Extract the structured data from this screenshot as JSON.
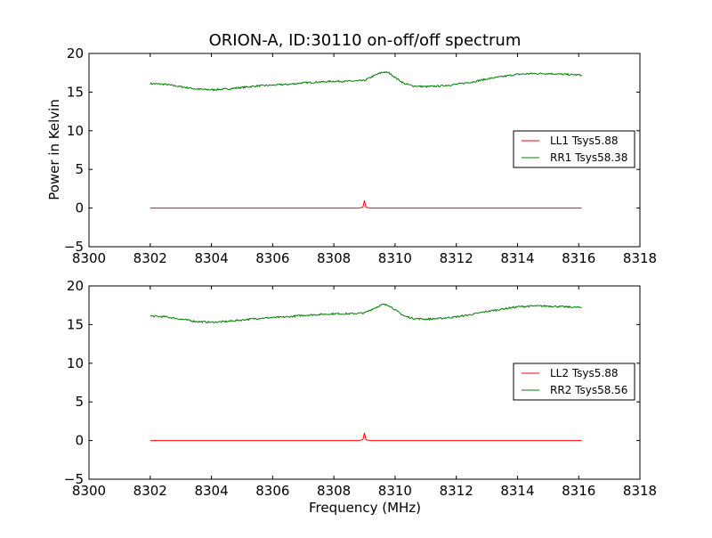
{
  "figure": {
    "title": "ORION-A, ID:30110 on-off/off spectrum",
    "xlabel": "Frequency (MHz)",
    "ylabel": "Power in Kelvin"
  },
  "chart_data": [
    {
      "type": "line",
      "xlim": [
        8300,
        8318
      ],
      "ylim": [
        -5,
        20
      ],
      "xticks": [
        8300,
        8302,
        8304,
        8306,
        8308,
        8310,
        8312,
        8314,
        8316,
        8318
      ],
      "yticks": [
        -5,
        0,
        5,
        10,
        15,
        20
      ],
      "grid": false,
      "legend_position": "center-right",
      "series": [
        {
          "name": "LL1 Tsys5.88",
          "color": "#ff0000",
          "x": [
            8302,
            8304,
            8306,
            8308,
            8308.8,
            8308.95,
            8309.0,
            8309.05,
            8309.2,
            8310,
            8312,
            8314,
            8316.1
          ],
          "y": [
            0,
            0,
            0,
            0,
            0,
            0.1,
            1.0,
            0.1,
            0,
            0,
            0,
            0,
            0
          ]
        },
        {
          "name": "RR1 Tsys58.38",
          "color": "#008000",
          "x": [
            8302,
            8302.5,
            8303,
            8303.5,
            8304,
            8304.5,
            8305,
            8305.5,
            8306,
            8306.5,
            8307,
            8307.5,
            8308,
            8308.5,
            8309,
            8309.3,
            8309.6,
            8309.8,
            8310,
            8310.3,
            8310.6,
            8311,
            8311.5,
            8312,
            8312.5,
            8313,
            8313.5,
            8314,
            8314.5,
            8315,
            8315.5,
            8316.1
          ],
          "y": [
            16.1,
            16.0,
            15.7,
            15.4,
            15.3,
            15.4,
            15.6,
            15.8,
            15.9,
            16.0,
            16.2,
            16.3,
            16.4,
            16.4,
            16.5,
            17.1,
            17.6,
            17.5,
            16.9,
            16.1,
            15.8,
            15.7,
            15.8,
            16.0,
            16.3,
            16.7,
            17.0,
            17.3,
            17.4,
            17.4,
            17.3,
            17.2
          ]
        }
      ]
    },
    {
      "type": "line",
      "xlim": [
        8300,
        8318
      ],
      "ylim": [
        -5,
        20
      ],
      "xticks": [
        8300,
        8302,
        8304,
        8306,
        8308,
        8310,
        8312,
        8314,
        8316,
        8318
      ],
      "yticks": [
        -5,
        0,
        5,
        10,
        15,
        20
      ],
      "grid": false,
      "legend_position": "center-right",
      "series": [
        {
          "name": "LL2 Tsys5.88",
          "color": "#ff0000",
          "x": [
            8302,
            8304,
            8306,
            8308,
            8308.8,
            8308.95,
            8309.0,
            8309.05,
            8309.2,
            8310,
            8312,
            8314,
            8316.1
          ],
          "y": [
            0,
            0,
            0,
            0,
            0,
            0.1,
            1.0,
            0.1,
            0,
            0,
            0,
            0,
            0
          ]
        },
        {
          "name": "RR2 Tsys58.56",
          "color": "#008000",
          "x": [
            8302,
            8302.5,
            8303,
            8303.5,
            8304,
            8304.5,
            8305,
            8305.5,
            8306,
            8306.5,
            8307,
            8307.5,
            8308,
            8308.5,
            8309,
            8309.3,
            8309.6,
            8309.8,
            8310,
            8310.3,
            8310.6,
            8311,
            8311.5,
            8312,
            8312.5,
            8313,
            8313.5,
            8314,
            8314.5,
            8315,
            8315.5,
            8316.1
          ],
          "y": [
            16.1,
            16.0,
            15.7,
            15.4,
            15.3,
            15.4,
            15.6,
            15.8,
            15.9,
            16.0,
            16.2,
            16.3,
            16.4,
            16.4,
            16.5,
            17.1,
            17.6,
            17.5,
            16.9,
            16.1,
            15.8,
            15.7,
            15.8,
            16.0,
            16.3,
            16.7,
            17.0,
            17.3,
            17.4,
            17.4,
            17.3,
            17.2
          ]
        }
      ]
    }
  ]
}
